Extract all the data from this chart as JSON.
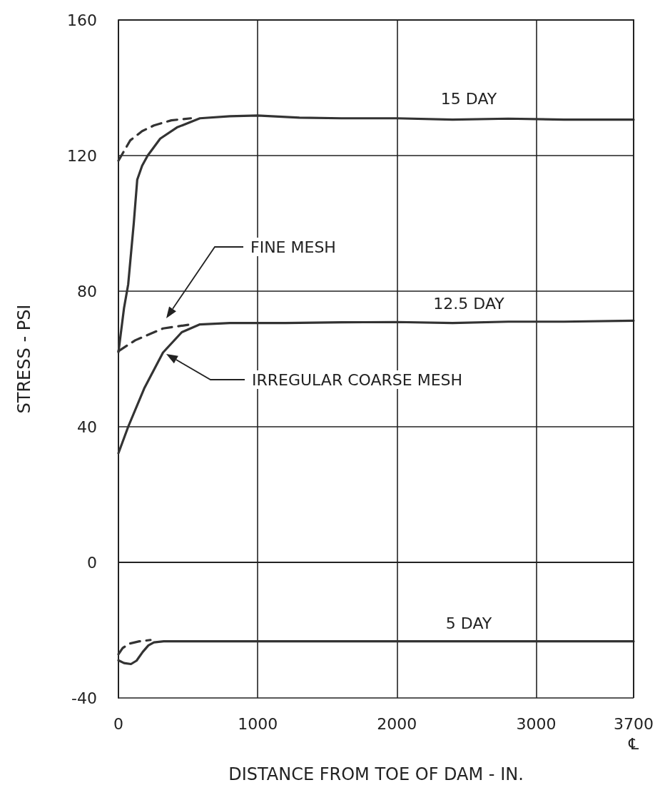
{
  "chart_data": {
    "type": "line",
    "xlabel": "DISTANCE FROM TOE OF DAM - IN.",
    "ylabel": "STRESS - PSI",
    "xlim": [
      0,
      3700
    ],
    "xticks": [
      0,
      1000,
      2000,
      3000,
      {
        "value": 3700,
        "label": "3700\n℄"
      }
    ],
    "ylim": [
      -40,
      160
    ],
    "yticks": [
      -40,
      0,
      40,
      80,
      120,
      160
    ],
    "grid": true,
    "marker": "none",
    "series": [
      {
        "color": "#333333",
        "line_style": "solid",
        "x": [
          0,
          40,
          70,
          110,
          135,
          170,
          210,
          300,
          420,
          585,
          800,
          1000,
          1300,
          1600,
          2000,
          2400,
          2800,
          3200,
          3700
        ],
        "values": [
          62,
          75,
          82,
          100,
          112.9,
          117,
          120,
          125,
          128.3,
          131,
          131.6,
          131.8,
          131.2,
          131,
          131,
          130.6,
          130.9,
          130.6,
          130.6
        ]
      },
      {
        "color": "#333333",
        "line_style": "dashed",
        "x": [
          0,
          85,
          170,
          255,
          380,
          520
        ],
        "values": [
          118.5,
          124.5,
          127.2,
          128.9,
          130.4,
          131
        ]
      },
      {
        "color": "#333333",
        "line_style": "solid",
        "x": [
          0,
          70,
          185,
          320,
          455,
          585,
          800,
          1200,
          1600,
          2000,
          2400,
          2800,
          3200,
          3700
        ],
        "values": [
          32.2,
          40,
          51.3,
          61.9,
          67.9,
          70.2,
          70.6,
          70.6,
          70.8,
          70.9,
          70.6,
          71,
          71,
          71.3
        ]
      },
      {
        "color": "#333333",
        "line_style": "dashed",
        "x": [
          0,
          120,
          320,
          520
        ],
        "values": [
          62.3,
          65.5,
          69,
          70.2
        ]
      },
      {
        "color": "#333333",
        "line_style": "solid",
        "x": [
          0,
          40,
          90,
          130,
          175,
          215,
          255,
          325,
          600,
          1000,
          2000,
          3000,
          3700
        ],
        "values": [
          -28.9,
          -29.7,
          -30,
          -29,
          -26.4,
          -24.5,
          -23.6,
          -23.3,
          -23.3,
          -23.3,
          -23.3,
          -23.3,
          -23.3
        ]
      },
      {
        "color": "#333333",
        "line_style": "dashed",
        "x": [
          0,
          30,
          75,
          150,
          230
        ],
        "values": [
          -27.1,
          -25.3,
          -24,
          -23.3,
          -22.9
        ]
      }
    ],
    "annotations": [
      "15 DAY",
      "12.5 DAY",
      "5 DAY",
      "FINE MESH",
      "IRREGULAR COARSE MESH"
    ]
  }
}
